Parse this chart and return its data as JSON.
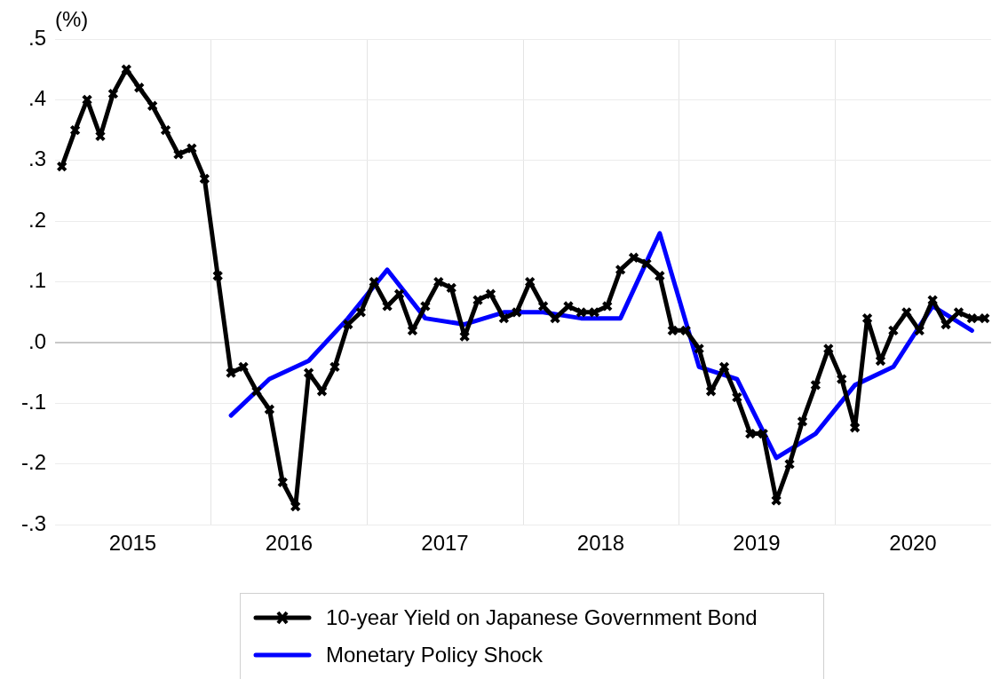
{
  "chart_data": {
    "type": "line",
    "ylabel": "(%)",
    "ylim": [
      -0.3,
      0.5
    ],
    "yticks": [
      {
        "value": -0.3,
        "label": "-.3"
      },
      {
        "value": -0.2,
        "label": "-.2"
      },
      {
        "value": -0.1,
        "label": "-.1"
      },
      {
        "value": 0,
        "label": ".0"
      },
      {
        "value": 0.1,
        "label": ".1"
      },
      {
        "value": 0.2,
        "label": ".2"
      },
      {
        "value": 0.3,
        "label": ".3"
      },
      {
        "value": 0.4,
        "label": ".4"
      },
      {
        "value": 0.5,
        "label": ".5"
      }
    ],
    "xlim": [
      "2014-12-16",
      "2020-12-16"
    ],
    "xticks": [
      {
        "value": "2015-06-16",
        "label": "2015"
      },
      {
        "value": "2015-12-16",
        "label": null
      },
      {
        "value": "2016-06-16",
        "label": "2016"
      },
      {
        "value": "2016-12-16",
        "label": null
      },
      {
        "value": "2017-06-16",
        "label": "2017"
      },
      {
        "value": "2017-12-16",
        "label": null
      },
      {
        "value": "2018-06-16",
        "label": "2018"
      },
      {
        "value": "2018-12-16",
        "label": null
      },
      {
        "value": "2019-06-16",
        "label": "2019"
      },
      {
        "value": "2019-12-16",
        "label": null
      },
      {
        "value": "2020-06-16",
        "label": "2020"
      }
    ],
    "grid": true,
    "legend": "bottom",
    "line_style": "solid",
    "series": [
      {
        "name": "10-year Yield on Japanese Government Bond",
        "color": "#000000",
        "marker": "cross",
        "x": [
          "2015-01",
          "2015-02",
          "2015-03",
          "2015-04",
          "2015-05",
          "2015-06",
          "2015-07",
          "2015-08",
          "2015-09",
          "2015-10",
          "2015-11",
          "2015-12",
          "2016-01",
          "2016-02",
          "2016-03",
          "2016-04",
          "2016-05",
          "2016-06",
          "2016-07",
          "2016-08",
          "2016-09",
          "2016-10",
          "2016-11",
          "2016-12",
          "2017-01",
          "2017-02",
          "2017-03",
          "2017-04",
          "2017-05",
          "2017-06",
          "2017-07",
          "2017-08",
          "2017-09",
          "2017-10",
          "2017-11",
          "2017-12",
          "2018-01",
          "2018-02",
          "2018-03",
          "2018-04",
          "2018-05",
          "2018-06",
          "2018-07",
          "2018-08",
          "2018-09",
          "2018-10",
          "2018-11",
          "2018-12",
          "2019-01",
          "2019-02",
          "2019-03",
          "2019-04",
          "2019-05",
          "2019-06",
          "2019-07",
          "2019-08",
          "2019-09",
          "2019-10",
          "2019-11",
          "2019-12",
          "2020-01",
          "2020-02",
          "2020-03",
          "2020-04",
          "2020-05",
          "2020-06",
          "2020-07",
          "2020-08",
          "2020-09",
          "2020-10",
          "2020-11",
          "2020-12"
        ],
        "values": [
          0.29,
          0.35,
          0.4,
          0.34,
          0.41,
          0.45,
          0.42,
          0.39,
          0.35,
          0.31,
          0.32,
          0.27,
          0.11,
          -0.05,
          -0.04,
          -0.08,
          -0.11,
          -0.23,
          -0.27,
          -0.05,
          -0.08,
          -0.04,
          0.03,
          0.05,
          0.1,
          0.06,
          0.08,
          0.02,
          0.06,
          0.1,
          0.09,
          0.01,
          0.07,
          0.08,
          0.04,
          0.05,
          0.1,
          0.06,
          0.04,
          0.06,
          0.05,
          0.05,
          0.06,
          0.12,
          0.14,
          0.13,
          0.11,
          0.02,
          0.02,
          -0.01,
          -0.08,
          -0.04,
          -0.09,
          -0.15,
          -0.15,
          -0.26,
          -0.2,
          -0.13,
          -0.07,
          -0.01,
          -0.06,
          -0.14,
          0.04,
          -0.03,
          0.02,
          0.05,
          0.02,
          0.07,
          0.03,
          0.05,
          0.04,
          0.04
        ]
      },
      {
        "name": "Monetary Policy Shock",
        "color": "#0000ff",
        "marker": "none",
        "x": [
          "2016-02",
          "2016-05",
          "2016-08",
          "2016-11",
          "2017-02",
          "2017-05",
          "2017-08",
          "2017-11",
          "2018-02",
          "2018-05",
          "2018-08",
          "2018-11",
          "2019-02",
          "2019-05",
          "2019-08",
          "2019-11",
          "2020-02",
          "2020-05",
          "2020-08",
          "2020-11"
        ],
        "values": [
          -0.12,
          -0.06,
          -0.03,
          0.04,
          0.12,
          0.04,
          0.03,
          0.05,
          0.05,
          0.04,
          0.04,
          0.18,
          -0.04,
          -0.06,
          -0.19,
          -0.15,
          -0.07,
          -0.04,
          0.06,
          0.02
        ]
      }
    ]
  }
}
